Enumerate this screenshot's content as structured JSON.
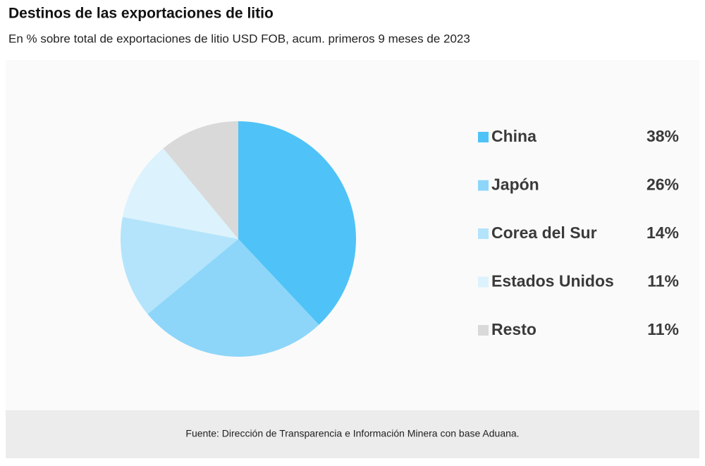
{
  "chart_data": {
    "type": "pie",
    "title": "Destinos de las exportaciones de litio",
    "subtitle": "En % sobre total de exportaciones de litio USD FOB, acum. primeros 9 meses de  2023",
    "categories": [
      "China",
      "Japón",
      "Corea del Sur",
      "Estados Unidos",
      "Resto"
    ],
    "values": [
      38,
      26,
      14,
      11,
      11
    ],
    "value_labels": [
      "38%",
      "26%",
      "14%",
      "11%",
      "11%"
    ],
    "colors": [
      "#4fc3f7",
      "#8dd6f9",
      "#b3e4fb",
      "#dcf2fc",
      "#d9d9d9"
    ],
    "legend": "right",
    "source": "Fuente: Dirección de Transparencia e Información Minera con base Aduana."
  }
}
